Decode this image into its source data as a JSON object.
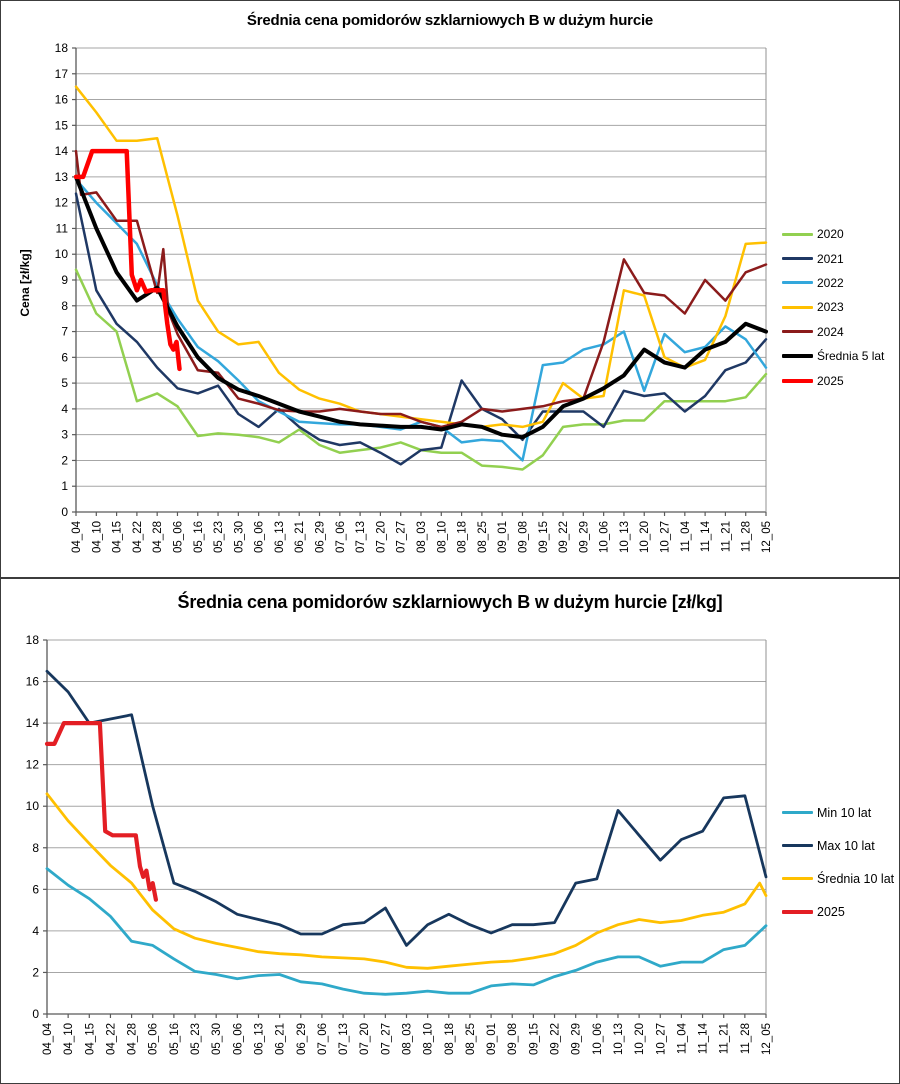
{
  "chart_data": [
    {
      "type": "line",
      "title": "Średnia cena pomidorów szklarniowych B w dużym hurcie",
      "ylabel": "Cena [zł/kg]",
      "ylim": [
        0,
        18
      ],
      "ytick_step": 1,
      "grid": true,
      "legend_position": "right",
      "categories": [
        "04_04",
        "04_10",
        "04_15",
        "04_22",
        "04_28",
        "05_06",
        "05_16",
        "05_23",
        "05_30",
        "06_06",
        "06_13",
        "06_21",
        "06_29",
        "07_06",
        "07_13",
        "07_20",
        "07_27",
        "08_03",
        "08_10",
        "08_18",
        "08_25",
        "09_01",
        "09_08",
        "09_15",
        "09_22",
        "09_29",
        "10_06",
        "10_13",
        "10_20",
        "10_27",
        "11_04",
        "11_14",
        "11_21",
        "11_28",
        "12_05"
      ],
      "series": [
        {
          "name": "2020",
          "color": "#92D050",
          "width": 2.5,
          "values": [
            9.4,
            7.7,
            7.0,
            4.3,
            4.6,
            4.1,
            2.95,
            3.05,
            3.0,
            2.9,
            2.7,
            3.2,
            2.6,
            2.3,
            2.4,
            2.5,
            2.7,
            2.4,
            2.3,
            2.3,
            1.8,
            1.75,
            1.65,
            2.2,
            3.3,
            3.4,
            3.4,
            3.55,
            3.55,
            4.3,
            4.3,
            4.3,
            4.3,
            4.45,
            5.35
          ]
        },
        {
          "name": "2021",
          "color": "#1F3864",
          "width": 2.5,
          "values": [
            12.35,
            8.6,
            7.3,
            6.6,
            5.6,
            4.8,
            4.6,
            4.9,
            3.8,
            3.3,
            4.0,
            3.3,
            2.8,
            2.6,
            2.7,
            2.3,
            1.85,
            2.4,
            2.5,
            5.1,
            4.0,
            3.6,
            2.8,
            3.9,
            3.9,
            3.9,
            3.3,
            4.7,
            4.5,
            4.6,
            3.9,
            4.5,
            5.5,
            5.8,
            6.7
          ]
        },
        {
          "name": "2022",
          "color": "#33A7DC",
          "width": 2.5,
          "values": [
            12.9,
            12.0,
            11.2,
            10.4,
            8.8,
            7.5,
            6.4,
            5.85,
            5.1,
            4.3,
            3.9,
            3.5,
            3.45,
            3.4,
            3.4,
            3.3,
            3.2,
            3.5,
            3.3,
            2.7,
            2.8,
            2.75,
            2.0,
            5.7,
            5.8,
            6.3,
            6.5,
            7.0,
            4.7,
            6.9,
            6.2,
            6.4,
            7.2,
            6.7,
            5.6
          ]
        },
        {
          "name": "2023",
          "color": "#FFC000",
          "width": 2.5,
          "values": [
            16.5,
            15.5,
            14.4,
            14.4,
            14.5,
            11.5,
            8.2,
            7.0,
            6.5,
            6.6,
            5.4,
            4.75,
            4.4,
            4.2,
            3.9,
            3.8,
            3.7,
            3.6,
            3.5,
            3.4,
            3.3,
            3.4,
            3.3,
            3.5,
            5.0,
            4.4,
            4.5,
            8.6,
            8.4,
            6.0,
            5.6,
            5.9,
            7.6,
            10.4,
            10.45
          ]
        },
        {
          "name": "2024",
          "color": "#8B1B1B",
          "width": 2.5,
          "x": [
            0,
            0.25,
            1,
            2,
            3,
            4,
            4.3,
            4.55,
            5,
            6,
            7,
            8,
            9,
            10,
            11,
            12,
            13,
            14,
            15,
            16,
            17,
            18,
            19,
            20,
            21,
            22,
            23,
            24,
            25,
            26,
            27,
            28,
            29,
            30,
            31,
            32,
            33,
            34
          ],
          "values": [
            14.0,
            12.3,
            12.4,
            11.3,
            11.3,
            8.5,
            10.2,
            7.8,
            6.9,
            5.5,
            5.4,
            4.4,
            4.2,
            3.95,
            3.9,
            3.9,
            4.0,
            3.9,
            3.8,
            3.8,
            3.5,
            3.3,
            3.5,
            4.0,
            3.9,
            4.0,
            4.1,
            4.3,
            4.4,
            6.6,
            9.8,
            8.5,
            8.4,
            7.7,
            9.0,
            8.2,
            9.3,
            9.6
          ]
        },
        {
          "name": "Średnia 5 lat",
          "color": "#000000",
          "width": 4,
          "values": [
            13.0,
            11.0,
            9.3,
            8.2,
            8.7,
            7.2,
            6.0,
            5.2,
            4.75,
            4.5,
            4.2,
            3.9,
            3.7,
            3.5,
            3.4,
            3.35,
            3.3,
            3.3,
            3.2,
            3.4,
            3.3,
            3.0,
            2.9,
            3.3,
            4.1,
            4.4,
            4.8,
            5.3,
            6.3,
            5.8,
            5.6,
            6.3,
            6.6,
            7.3,
            7.0
          ]
        },
        {
          "name": "2025",
          "color": "#FF0000",
          "width": 4.5,
          "x": [
            0,
            0.35,
            0.8,
            2.5,
            2.75,
            3.0,
            3.2,
            3.45,
            3.7,
            4.3,
            4.5,
            4.65,
            4.8,
            4.95,
            5.1
          ],
          "values": [
            13.0,
            13.0,
            14.0,
            14.0,
            9.2,
            8.6,
            9.0,
            8.55,
            8.6,
            8.6,
            7.3,
            6.5,
            6.3,
            6.6,
            5.55
          ]
        }
      ]
    },
    {
      "type": "line",
      "title": "Średnia cena pomidorów szklarniowych B w dużym hurcie [zł/kg]",
      "ylabel": "",
      "ylim": [
        0,
        18
      ],
      "ytick_step": 2,
      "grid": true,
      "legend_position": "right",
      "categories": [
        "04_04",
        "04_10",
        "04_15",
        "04_22",
        "04_28",
        "05_06",
        "05_16",
        "05_23",
        "05_30",
        "06_06",
        "06_13",
        "06_21",
        "06_29",
        "07_06",
        "07_13",
        "07_20",
        "07_27",
        "08_03",
        "08_10",
        "08_18",
        "08_25",
        "09_01",
        "09_08",
        "09_15",
        "09_22",
        "09_29",
        "10_06",
        "10_13",
        "10_20",
        "10_27",
        "11_04",
        "11_14",
        "11_21",
        "11_28",
        "12_05"
      ],
      "series": [
        {
          "name": "Min 10 lat",
          "color": "#2FA9C9",
          "width": 2.8,
          "values": [
            7.0,
            6.2,
            5.55,
            4.7,
            3.5,
            3.3,
            2.65,
            2.05,
            1.9,
            1.7,
            1.85,
            1.9,
            1.55,
            1.45,
            1.2,
            1.0,
            0.95,
            1.0,
            1.1,
            1.0,
            1.0,
            1.35,
            1.45,
            1.4,
            1.8,
            2.1,
            2.5,
            2.75,
            2.75,
            2.3,
            2.5,
            2.5,
            3.1,
            3.3,
            4.25
          ]
        },
        {
          "name": "Max 10 lat",
          "color": "#17375D",
          "width": 2.8,
          "values": [
            16.5,
            15.5,
            14.0,
            14.2,
            14.4,
            10.0,
            6.3,
            5.9,
            5.4,
            4.8,
            4.55,
            4.3,
            3.85,
            3.85,
            4.3,
            4.4,
            5.1,
            3.3,
            4.3,
            4.8,
            4.3,
            3.9,
            4.3,
            4.3,
            4.4,
            6.3,
            6.5,
            9.8,
            8.6,
            7.4,
            8.4,
            8.8,
            10.4,
            10.5,
            6.6
          ]
        },
        {
          "name": "Średnia 10 lat",
          "color": "#FFC000",
          "width": 2.8,
          "x": [
            0,
            1,
            2,
            3,
            4,
            5,
            6,
            7,
            8,
            9,
            10,
            11,
            12,
            13,
            14,
            15,
            16,
            17,
            18,
            19,
            20,
            21,
            22,
            23,
            24,
            25,
            26,
            27,
            28,
            29,
            30,
            31,
            32,
            33,
            33.7,
            34
          ],
          "values": [
            10.6,
            9.3,
            8.2,
            7.15,
            6.3,
            5.0,
            4.1,
            3.65,
            3.4,
            3.2,
            3.0,
            2.9,
            2.85,
            2.75,
            2.7,
            2.65,
            2.5,
            2.25,
            2.2,
            2.3,
            2.4,
            2.5,
            2.55,
            2.7,
            2.9,
            3.3,
            3.9,
            4.3,
            4.55,
            4.4,
            4.5,
            4.75,
            4.9,
            5.3,
            6.3,
            5.7
          ]
        },
        {
          "name": "2025",
          "color": "#E31E24",
          "width": 4.2,
          "x": [
            0,
            0.35,
            0.8,
            2.5,
            2.75,
            3.1,
            3.7,
            4.2,
            4.4,
            4.55,
            4.7,
            4.85,
            5.0,
            5.15
          ],
          "values": [
            13.0,
            13.0,
            14.0,
            14.0,
            8.8,
            8.6,
            8.6,
            8.6,
            7.1,
            6.6,
            6.9,
            6.0,
            6.3,
            5.5
          ]
        }
      ]
    }
  ],
  "style": {
    "grid_color": "#A6A6A6",
    "axis_color": "#595959",
    "plot_border_color": "#909090",
    "text_color": "#000000"
  }
}
